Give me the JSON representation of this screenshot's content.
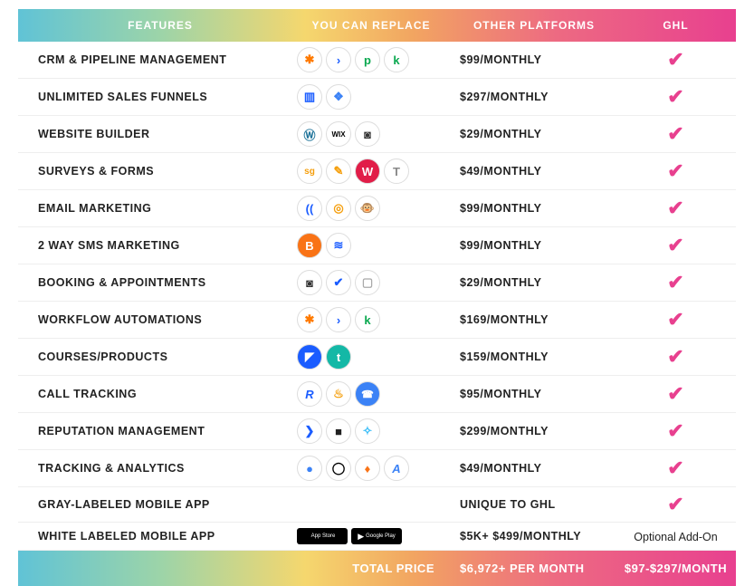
{
  "header": {
    "features": "FEATURES",
    "replace": "YOU CAN REPLACE",
    "other": "OTHER PLATFORMS",
    "ghl": "GHL"
  },
  "rows": [
    {
      "feature": "CRM & PIPELINE MANAGEMENT",
      "icons": [
        {
          "text": "✱",
          "color": "#ff7a00"
        },
        {
          "text": "›",
          "color": "#1a5cff"
        },
        {
          "text": "p",
          "color": "#0aa84f"
        },
        {
          "text": "k",
          "color": "#0aa84f"
        }
      ],
      "price": "$99/MONTHLY",
      "ghl": "check"
    },
    {
      "feature": "UNLIMITED SALES FUNNELS",
      "icons": [
        {
          "text": "▥",
          "color": "#1a5cff"
        },
        {
          "text": "❖",
          "color": "#3b82f6"
        }
      ],
      "price": "$297/MONTHLY",
      "ghl": "check"
    },
    {
      "feature": "WEBSITE BUILDER",
      "icons": [
        {
          "text": "Ⓦ",
          "color": "#21759b"
        },
        {
          "text": "WIX",
          "color": "#000",
          "fs": "8px"
        },
        {
          "text": "◙",
          "color": "#333"
        }
      ],
      "price": "$29/MONTHLY",
      "ghl": "check"
    },
    {
      "feature": "SURVEYS & FORMS",
      "icons": [
        {
          "text": "sg",
          "color": "#f59e0b",
          "fs": "10px"
        },
        {
          "text": "✎",
          "color": "#f59e0b"
        },
        {
          "text": "W",
          "color": "#fff",
          "bg": "#e11d48"
        },
        {
          "text": "T",
          "color": "#888"
        }
      ],
      "price": "$49/MONTHLY",
      "ghl": "check"
    },
    {
      "feature": "EMAIL MARKETING",
      "icons": [
        {
          "text": "((",
          "color": "#1a5cff"
        },
        {
          "text": "◎",
          "color": "#f59e0b"
        },
        {
          "text": "🐵",
          "color": "#000",
          "fs": "13px"
        }
      ],
      "price": "$99/MONTHLY",
      "ghl": "check"
    },
    {
      "feature": "2 WAY SMS MARKETING",
      "icons": [
        {
          "text": "B",
          "color": "#fff",
          "bg": "#f97316"
        },
        {
          "text": "≋",
          "color": "#1a5cff"
        }
      ],
      "price": "$99/MONTHLY",
      "ghl": "check"
    },
    {
      "feature": "BOOKING & APPOINTMENTS",
      "icons": [
        {
          "text": "◙",
          "color": "#333"
        },
        {
          "text": "✔",
          "color": "#1a5cff"
        },
        {
          "text": "▢",
          "color": "#aaa"
        }
      ],
      "price": "$29/MONTHLY",
      "ghl": "check"
    },
    {
      "feature": "WORKFLOW AUTOMATIONS",
      "icons": [
        {
          "text": "✱",
          "color": "#ff7a00"
        },
        {
          "text": "›",
          "color": "#1a5cff"
        },
        {
          "text": "k",
          "color": "#0aa84f"
        }
      ],
      "price": "$169/MONTHLY",
      "ghl": "check"
    },
    {
      "feature": "COURSES/PRODUCTS",
      "icons": [
        {
          "text": "◤",
          "color": "#fff",
          "bg": "#1a5cff"
        },
        {
          "text": "t",
          "color": "#fff",
          "bg": "#14b8a6"
        }
      ],
      "price": "$159/MONTHLY",
      "ghl": "check"
    },
    {
      "feature": "CALL TRACKING",
      "icons": [
        {
          "text": "R",
          "color": "#1a5cff",
          "style": "italic"
        },
        {
          "text": "♨",
          "color": "#f59e0b"
        },
        {
          "text": "☎",
          "color": "#fff",
          "bg": "#3b82f6",
          "fs": "11px"
        }
      ],
      "price": "$95/MONTHLY",
      "ghl": "check"
    },
    {
      "feature": "REPUTATION MANAGEMENT",
      "icons": [
        {
          "text": "❯",
          "color": "#1a5cff"
        },
        {
          "text": "■",
          "color": "#222"
        },
        {
          "text": "✧",
          "color": "#38bdf8"
        }
      ],
      "price": "$299/MONTHLY",
      "ghl": "check"
    },
    {
      "feature": "TRACKING & ANALYTICS",
      "icons": [
        {
          "text": "●",
          "color": "#3b82f6"
        },
        {
          "text": "◯",
          "color": "#000"
        },
        {
          "text": "♦",
          "color": "#f97316"
        },
        {
          "text": "A",
          "color": "#3b82f6",
          "style": "italic"
        }
      ],
      "price": "$49/MONTHLY",
      "ghl": "check"
    },
    {
      "feature": "GRAY-LABELED MOBILE APP",
      "icons": [],
      "price": "UNIQUE TO GHL",
      "ghl": "check"
    },
    {
      "feature": "WHITE LABELED MOBILE APP",
      "badges": [
        {
          "glyph": "",
          "label": "App Store"
        },
        {
          "glyph": "▶",
          "label": "Google Play"
        }
      ],
      "price": "$5K+ $499/MONTHLY",
      "ghl": "text",
      "ghl_text": "Optional Add-On"
    }
  ],
  "footer": {
    "total_label": "TOTAL PRICE",
    "other_total": "$6,972+ PER MONTH",
    "ghl_total": "$97-$297/MONTH"
  },
  "colors": {
    "check": "#e8408f",
    "gradient": [
      "#60c3d6",
      "#9dd4a8",
      "#f5d76e",
      "#f2a561",
      "#ed6a82",
      "#e8408f"
    ]
  }
}
